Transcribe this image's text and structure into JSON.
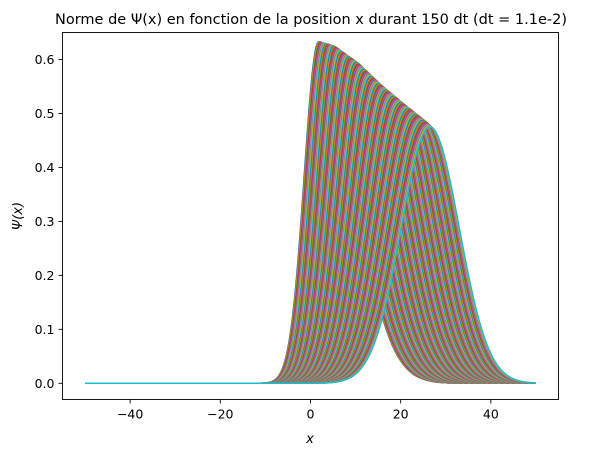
{
  "chart_data": {
    "type": "line",
    "title": "Norme de Ψ(x) en fonction de la position x durant 150 dt (dt = 1.1e-2)",
    "xlabel": "x",
    "ylabel": "Ψ(x)",
    "xlim": [
      -55,
      55
    ],
    "ylim": [
      -0.03,
      0.65
    ],
    "xticks": [
      -40,
      -20,
      0,
      20,
      40
    ],
    "xtick_labels": [
      "−40",
      "−20",
      "0",
      "20",
      "40"
    ],
    "yticks": [
      0.0,
      0.1,
      0.2,
      0.3,
      0.4,
      0.5,
      0.6
    ],
    "ytick_labels": [
      "0.0",
      "0.1",
      "0.2",
      "0.3",
      "0.4",
      "0.5",
      "0.6"
    ],
    "grid": false,
    "legend": "none",
    "colors": [
      "#1f77b4",
      "#ff7f0e",
      "#2ca02c",
      "#d62728",
      "#9467bd",
      "#8c564b",
      "#e377c2",
      "#7f7f7f",
      "#bcbd22",
      "#17becf"
    ],
    "x_range": [
      -50,
      50
    ],
    "curve_count": 150,
    "first_curve": {
      "peak_x": 1.8,
      "peak_y": 0.633
    },
    "last_curve": {
      "peak_x": 26.5,
      "peak_y": 0.475
    },
    "envelope_peaks": [
      {
        "x": 1.8,
        "y": 0.633
      },
      {
        "x": 5.0,
        "y": 0.625
      },
      {
        "x": 10.0,
        "y": 0.595
      },
      {
        "x": 15.0,
        "y": 0.555
      },
      {
        "x": 20.0,
        "y": 0.52
      },
      {
        "x": 25.0,
        "y": 0.487
      },
      {
        "x": 26.5,
        "y": 0.475
      }
    ]
  }
}
